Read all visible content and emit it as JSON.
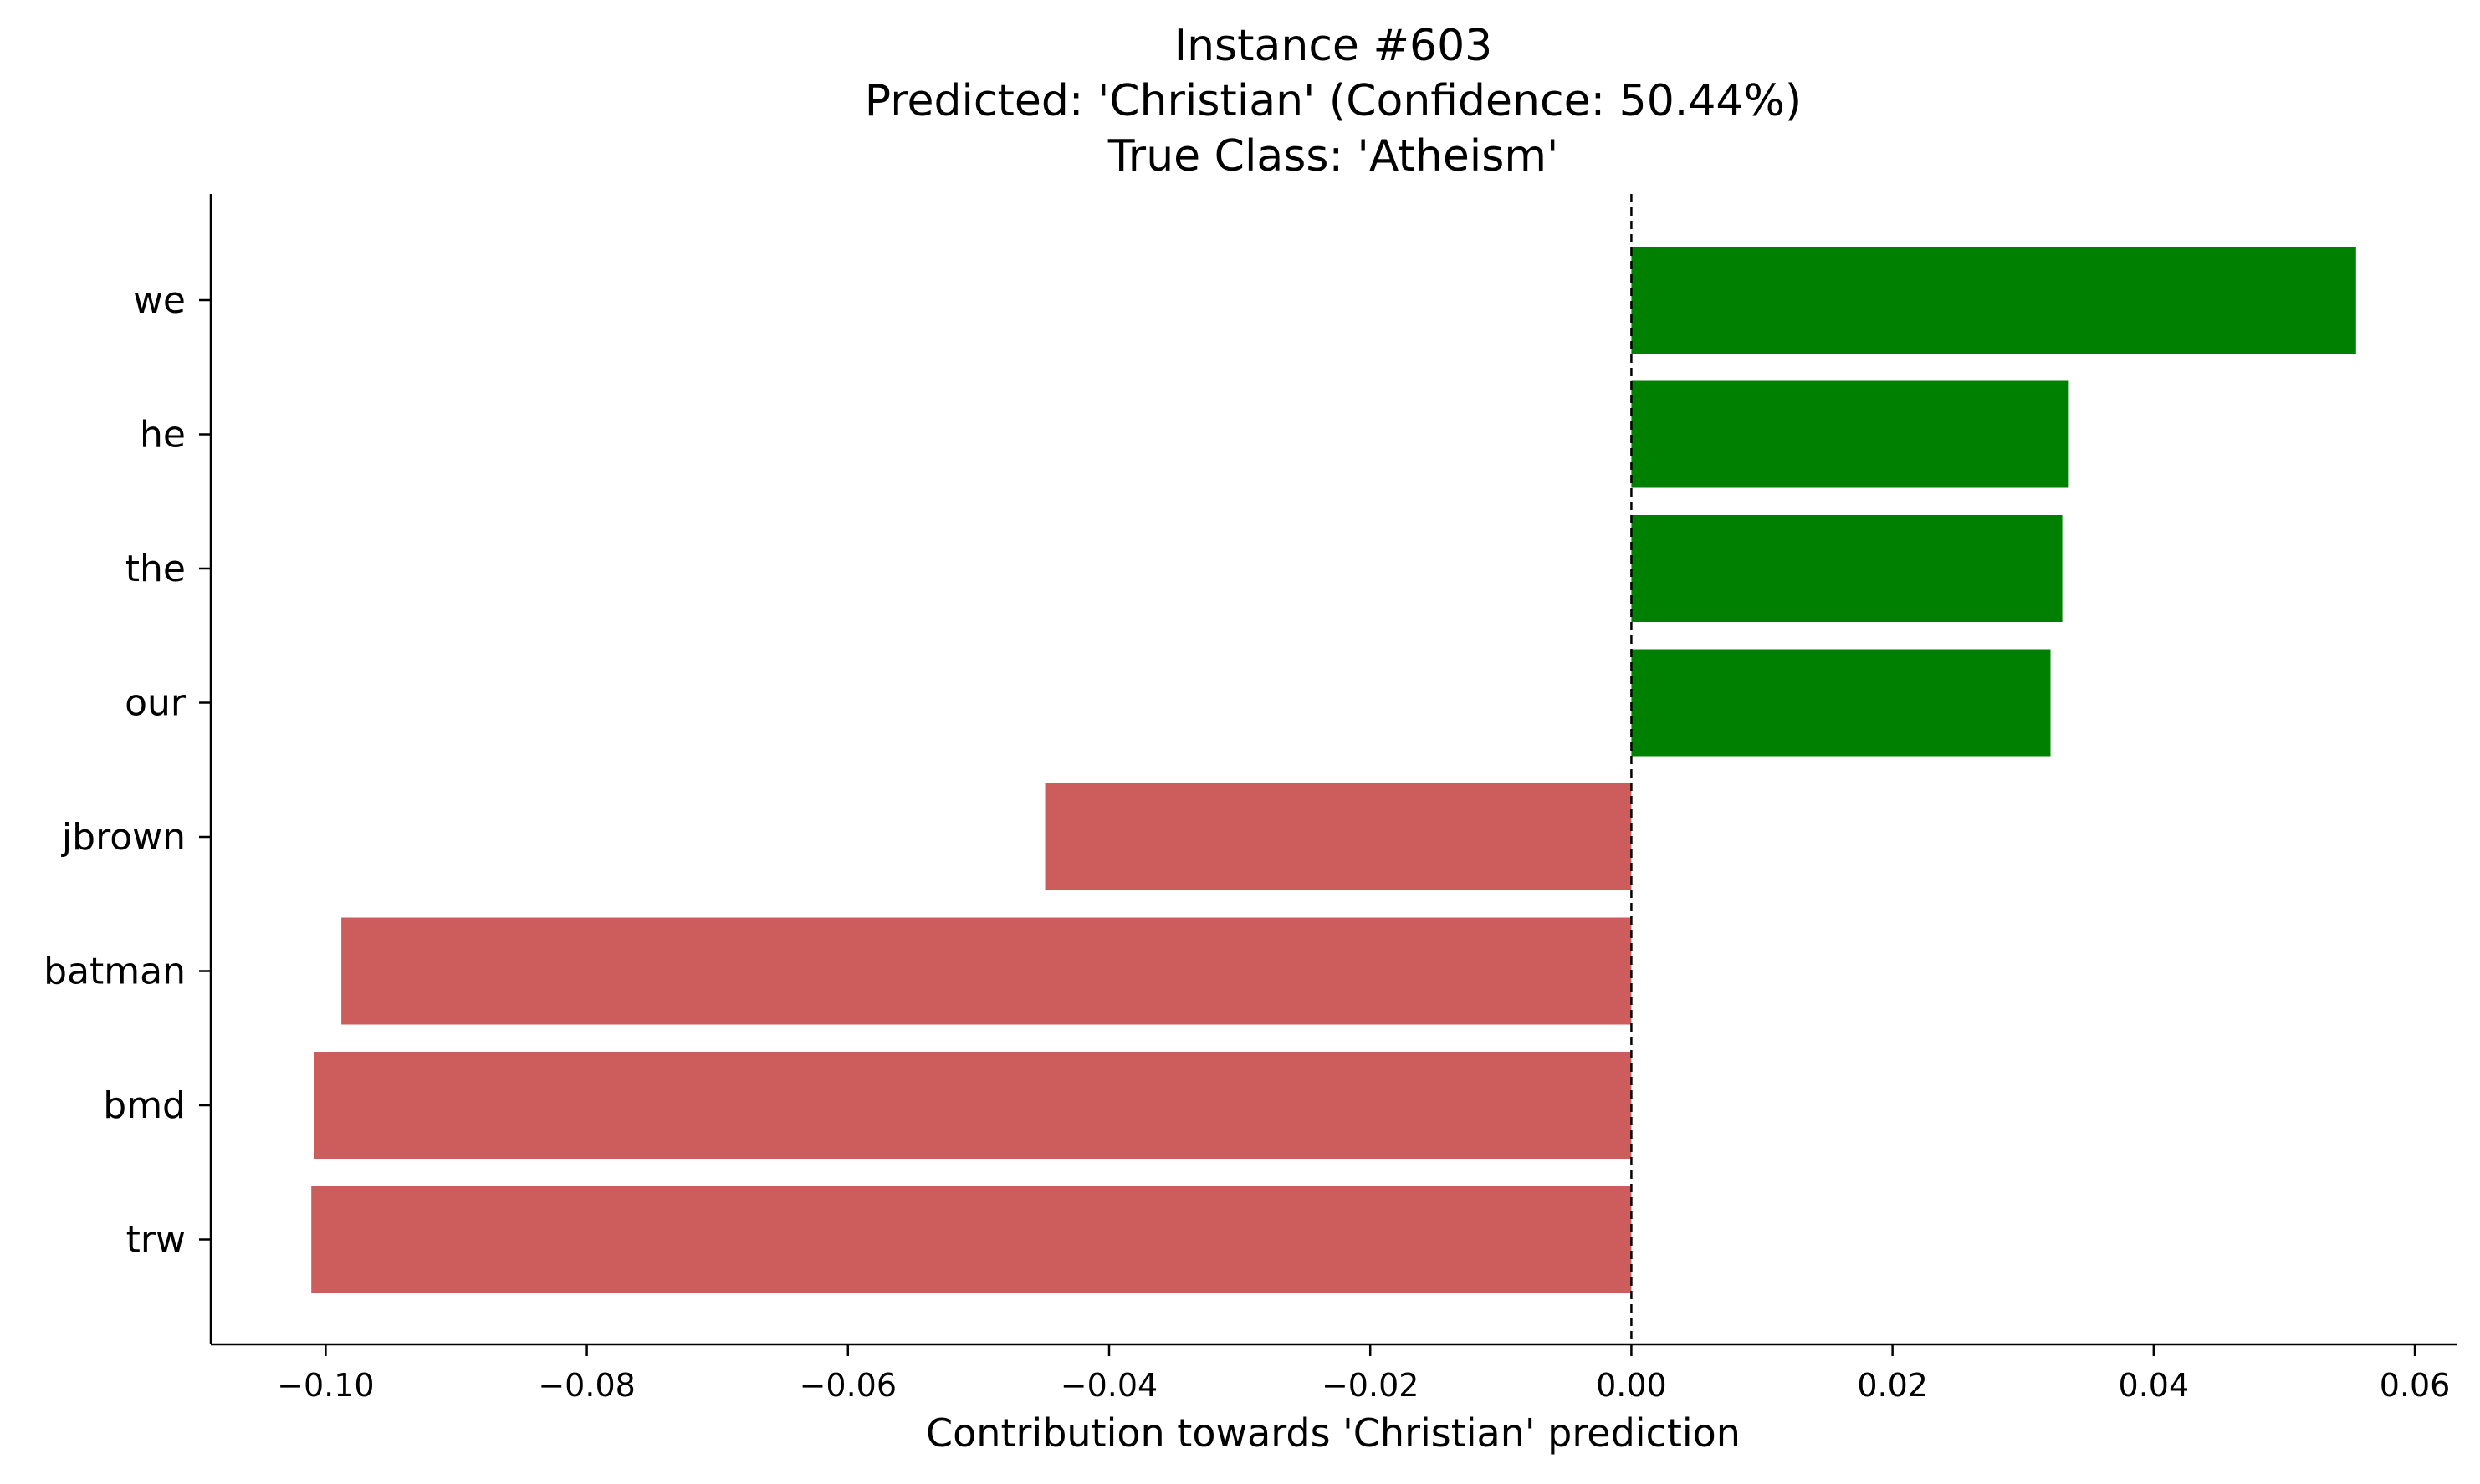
{
  "chart_data": {
    "type": "bar",
    "orientation": "horizontal",
    "title_lines": [
      "Instance #603",
      "Predicted: 'Christian' (Confidence: 50.44%)",
      "True Class: 'Atheism'"
    ],
    "xlabel": "Contribution towards 'Christian' prediction",
    "ylabel": "",
    "categories": [
      "we",
      "he",
      "the",
      "our",
      "jbrown",
      "batman",
      "bmd",
      "trw"
    ],
    "values": [
      0.0555,
      0.0335,
      0.033,
      0.0321,
      -0.0449,
      -0.0988,
      -0.1009,
      -0.1011
    ],
    "xlim": [
      -0.1088,
      0.0632
    ],
    "xticks": [
      -0.1,
      -0.08,
      -0.06,
      -0.04,
      -0.02,
      0.0,
      0.02,
      0.04,
      0.06
    ],
    "xtick_labels": [
      "−0.10",
      "−0.08",
      "−0.06",
      "−0.04",
      "−0.02",
      "0.00",
      "0.02",
      "0.04",
      "0.06"
    ],
    "reference_line": {
      "x": 0.0,
      "style": "dashed"
    },
    "grid": false,
    "colors": {
      "positive": "#008000",
      "negative": "#cd5c5c",
      "axis": "#000000"
    }
  }
}
